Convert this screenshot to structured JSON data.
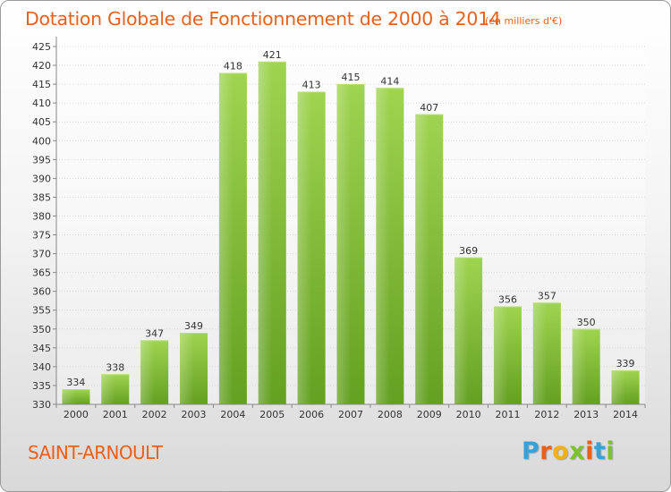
{
  "chart_data": {
    "type": "bar",
    "title": "Dotation Globale de Fonctionnement de 2000 à 2014",
    "subtitle": "(en milliers d'€)",
    "categories": [
      "2000",
      "2001",
      "2002",
      "2003",
      "2004",
      "2005",
      "2006",
      "2007",
      "2008",
      "2009",
      "2010",
      "2011",
      "2012",
      "2013",
      "2014"
    ],
    "values": [
      334,
      338,
      347,
      349,
      418,
      421,
      413,
      415,
      414,
      407,
      369,
      356,
      357,
      350,
      339
    ],
    "data_labels": [
      "334",
      "338",
      "347",
      "349",
      "418",
      "421",
      "413",
      "415",
      "414",
      "407",
      "369",
      "356",
      "357",
      "350",
      "339"
    ],
    "ylim": [
      330,
      425
    ],
    "yticks": [
      "330",
      "335",
      "340",
      "345",
      "350",
      "355",
      "360",
      "365",
      "370",
      "375",
      "380",
      "385",
      "390",
      "395",
      "400",
      "405",
      "410",
      "415",
      "420",
      "425"
    ],
    "grid": true,
    "xlabel": "",
    "ylabel": "",
    "colors": {
      "bar": "#7dc12e",
      "bar_light": "#9fd450",
      "bar_dark": "#64a021",
      "text_accent": "#e8611b"
    }
  },
  "commune": "SAINT-ARNOULT",
  "logo": {
    "letters": [
      "P",
      "r",
      "o",
      "x",
      "i",
      "t",
      "i"
    ],
    "colors": [
      "#3aa0d8",
      "#e8611b",
      "#f2b01e",
      "#7dc12e",
      "#e8611b",
      "#3aa0d8",
      "#7dc12e"
    ]
  }
}
